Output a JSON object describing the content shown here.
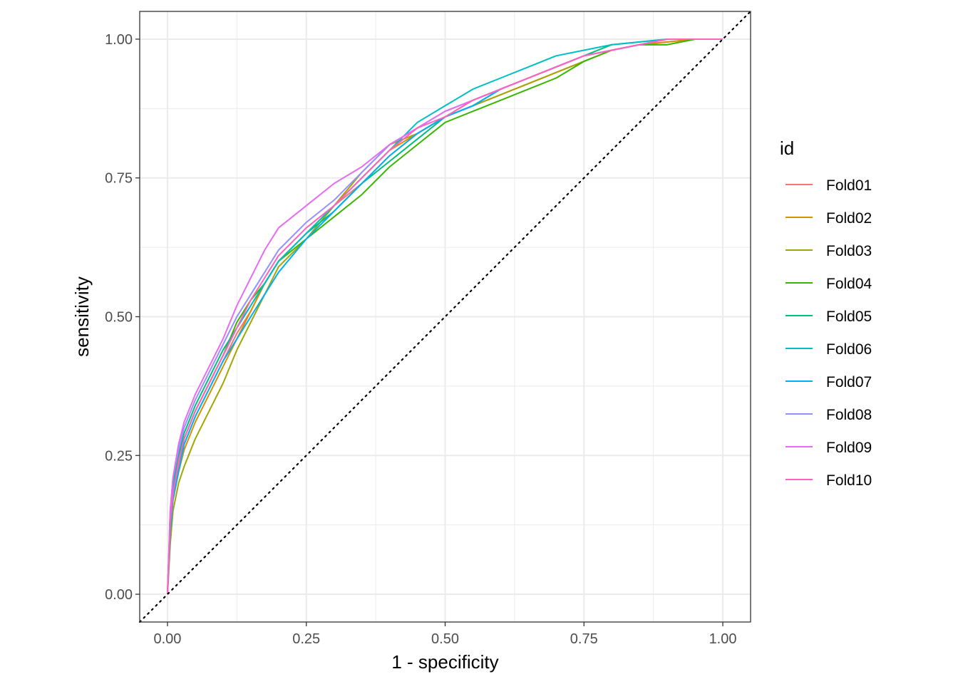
{
  "chart_data": {
    "type": "line",
    "title": "",
    "xlabel": "1 - specificity",
    "ylabel": "sensitivity",
    "xlim": [
      -0.05,
      1.05
    ],
    "ylim": [
      -0.05,
      1.05
    ],
    "x_ticks": [
      "0.00",
      "0.25",
      "0.50",
      "0.75",
      "1.00"
    ],
    "y_ticks": [
      "0.00",
      "0.25",
      "0.50",
      "0.75",
      "1.00"
    ],
    "grid": true,
    "reference_line": "diagonal",
    "legend_title": "id",
    "legend_position": "right",
    "x": [
      0,
      0.005,
      0.01,
      0.02,
      0.03,
      0.05,
      0.075,
      0.1,
      0.125,
      0.15,
      0.175,
      0.2,
      0.25,
      0.3,
      0.35,
      0.4,
      0.45,
      0.5,
      0.55,
      0.6,
      0.65,
      0.7,
      0.75,
      0.8,
      0.85,
      0.9,
      0.95,
      1.0
    ],
    "series": [
      {
        "name": "Fold01",
        "color": "#F8766D",
        "values": [
          0,
          0.13,
          0.18,
          0.23,
          0.27,
          0.32,
          0.37,
          0.42,
          0.47,
          0.51,
          0.56,
          0.6,
          0.65,
          0.7,
          0.74,
          0.79,
          0.83,
          0.86,
          0.88,
          0.9,
          0.92,
          0.94,
          0.96,
          0.98,
          0.99,
          0.995,
          1.0,
          1.0
        ]
      },
      {
        "name": "Fold02",
        "color": "#D89000",
        "values": [
          0,
          0.12,
          0.17,
          0.22,
          0.26,
          0.31,
          0.36,
          0.41,
          0.46,
          0.51,
          0.56,
          0.6,
          0.65,
          0.7,
          0.75,
          0.8,
          0.83,
          0.86,
          0.89,
          0.91,
          0.93,
          0.95,
          0.97,
          0.98,
          0.99,
          0.995,
          1.0,
          1.0
        ]
      },
      {
        "name": "Fold03",
        "color": "#A3A500",
        "values": [
          0,
          0.09,
          0.15,
          0.2,
          0.23,
          0.28,
          0.33,
          0.38,
          0.44,
          0.49,
          0.54,
          0.59,
          0.64,
          0.7,
          0.76,
          0.81,
          0.83,
          0.86,
          0.88,
          0.9,
          0.92,
          0.94,
          0.96,
          0.98,
          0.99,
          0.99,
          1.0,
          1.0
        ]
      },
      {
        "name": "Fold04",
        "color": "#39B600",
        "values": [
          0,
          0.14,
          0.19,
          0.24,
          0.28,
          0.33,
          0.38,
          0.43,
          0.49,
          0.53,
          0.56,
          0.6,
          0.64,
          0.68,
          0.72,
          0.77,
          0.81,
          0.85,
          0.87,
          0.89,
          0.91,
          0.93,
          0.96,
          0.98,
          0.99,
          0.99,
          1.0,
          1.0
        ]
      },
      {
        "name": "Fold05",
        "color": "#00BF7D",
        "values": [
          0,
          0.14,
          0.2,
          0.25,
          0.29,
          0.34,
          0.39,
          0.44,
          0.48,
          0.52,
          0.56,
          0.6,
          0.65,
          0.69,
          0.74,
          0.78,
          0.82,
          0.86,
          0.88,
          0.91,
          0.93,
          0.95,
          0.97,
          0.99,
          0.995,
          1.0,
          1.0,
          1.0
        ]
      },
      {
        "name": "Fold06",
        "color": "#00BFC4",
        "values": [
          0,
          0.13,
          0.19,
          0.24,
          0.28,
          0.33,
          0.38,
          0.43,
          0.48,
          0.52,
          0.56,
          0.6,
          0.65,
          0.7,
          0.75,
          0.8,
          0.85,
          0.88,
          0.91,
          0.93,
          0.95,
          0.97,
          0.98,
          0.99,
          0.995,
          1.0,
          1.0,
          1.0
        ]
      },
      {
        "name": "Fold07",
        "color": "#00B0F6",
        "values": [
          0,
          0.11,
          0.17,
          0.22,
          0.27,
          0.32,
          0.37,
          0.42,
          0.46,
          0.5,
          0.54,
          0.58,
          0.64,
          0.69,
          0.74,
          0.79,
          0.83,
          0.86,
          0.88,
          0.91,
          0.93,
          0.95,
          0.97,
          0.98,
          0.99,
          1.0,
          1.0,
          1.0
        ]
      },
      {
        "name": "Fold08",
        "color": "#9590FF",
        "values": [
          0,
          0.15,
          0.21,
          0.26,
          0.3,
          0.35,
          0.4,
          0.45,
          0.5,
          0.54,
          0.58,
          0.62,
          0.67,
          0.71,
          0.76,
          0.81,
          0.84,
          0.87,
          0.89,
          0.91,
          0.93,
          0.95,
          0.97,
          0.98,
          0.99,
          1.0,
          1.0,
          1.0
        ]
      },
      {
        "name": "Fold09",
        "color": "#E76BF3",
        "values": [
          0,
          0.15,
          0.21,
          0.27,
          0.31,
          0.36,
          0.41,
          0.46,
          0.52,
          0.57,
          0.62,
          0.66,
          0.7,
          0.74,
          0.77,
          0.81,
          0.84,
          0.87,
          0.89,
          0.91,
          0.93,
          0.95,
          0.97,
          0.98,
          0.99,
          1.0,
          1.0,
          1.0
        ]
      },
      {
        "name": "Fold10",
        "color": "#FF62BC",
        "values": [
          0,
          0.13,
          0.18,
          0.24,
          0.28,
          0.33,
          0.38,
          0.43,
          0.48,
          0.53,
          0.57,
          0.61,
          0.66,
          0.7,
          0.75,
          0.8,
          0.84,
          0.86,
          0.89,
          0.91,
          0.93,
          0.95,
          0.97,
          0.98,
          0.99,
          1.0,
          1.0,
          1.0
        ]
      }
    ]
  }
}
